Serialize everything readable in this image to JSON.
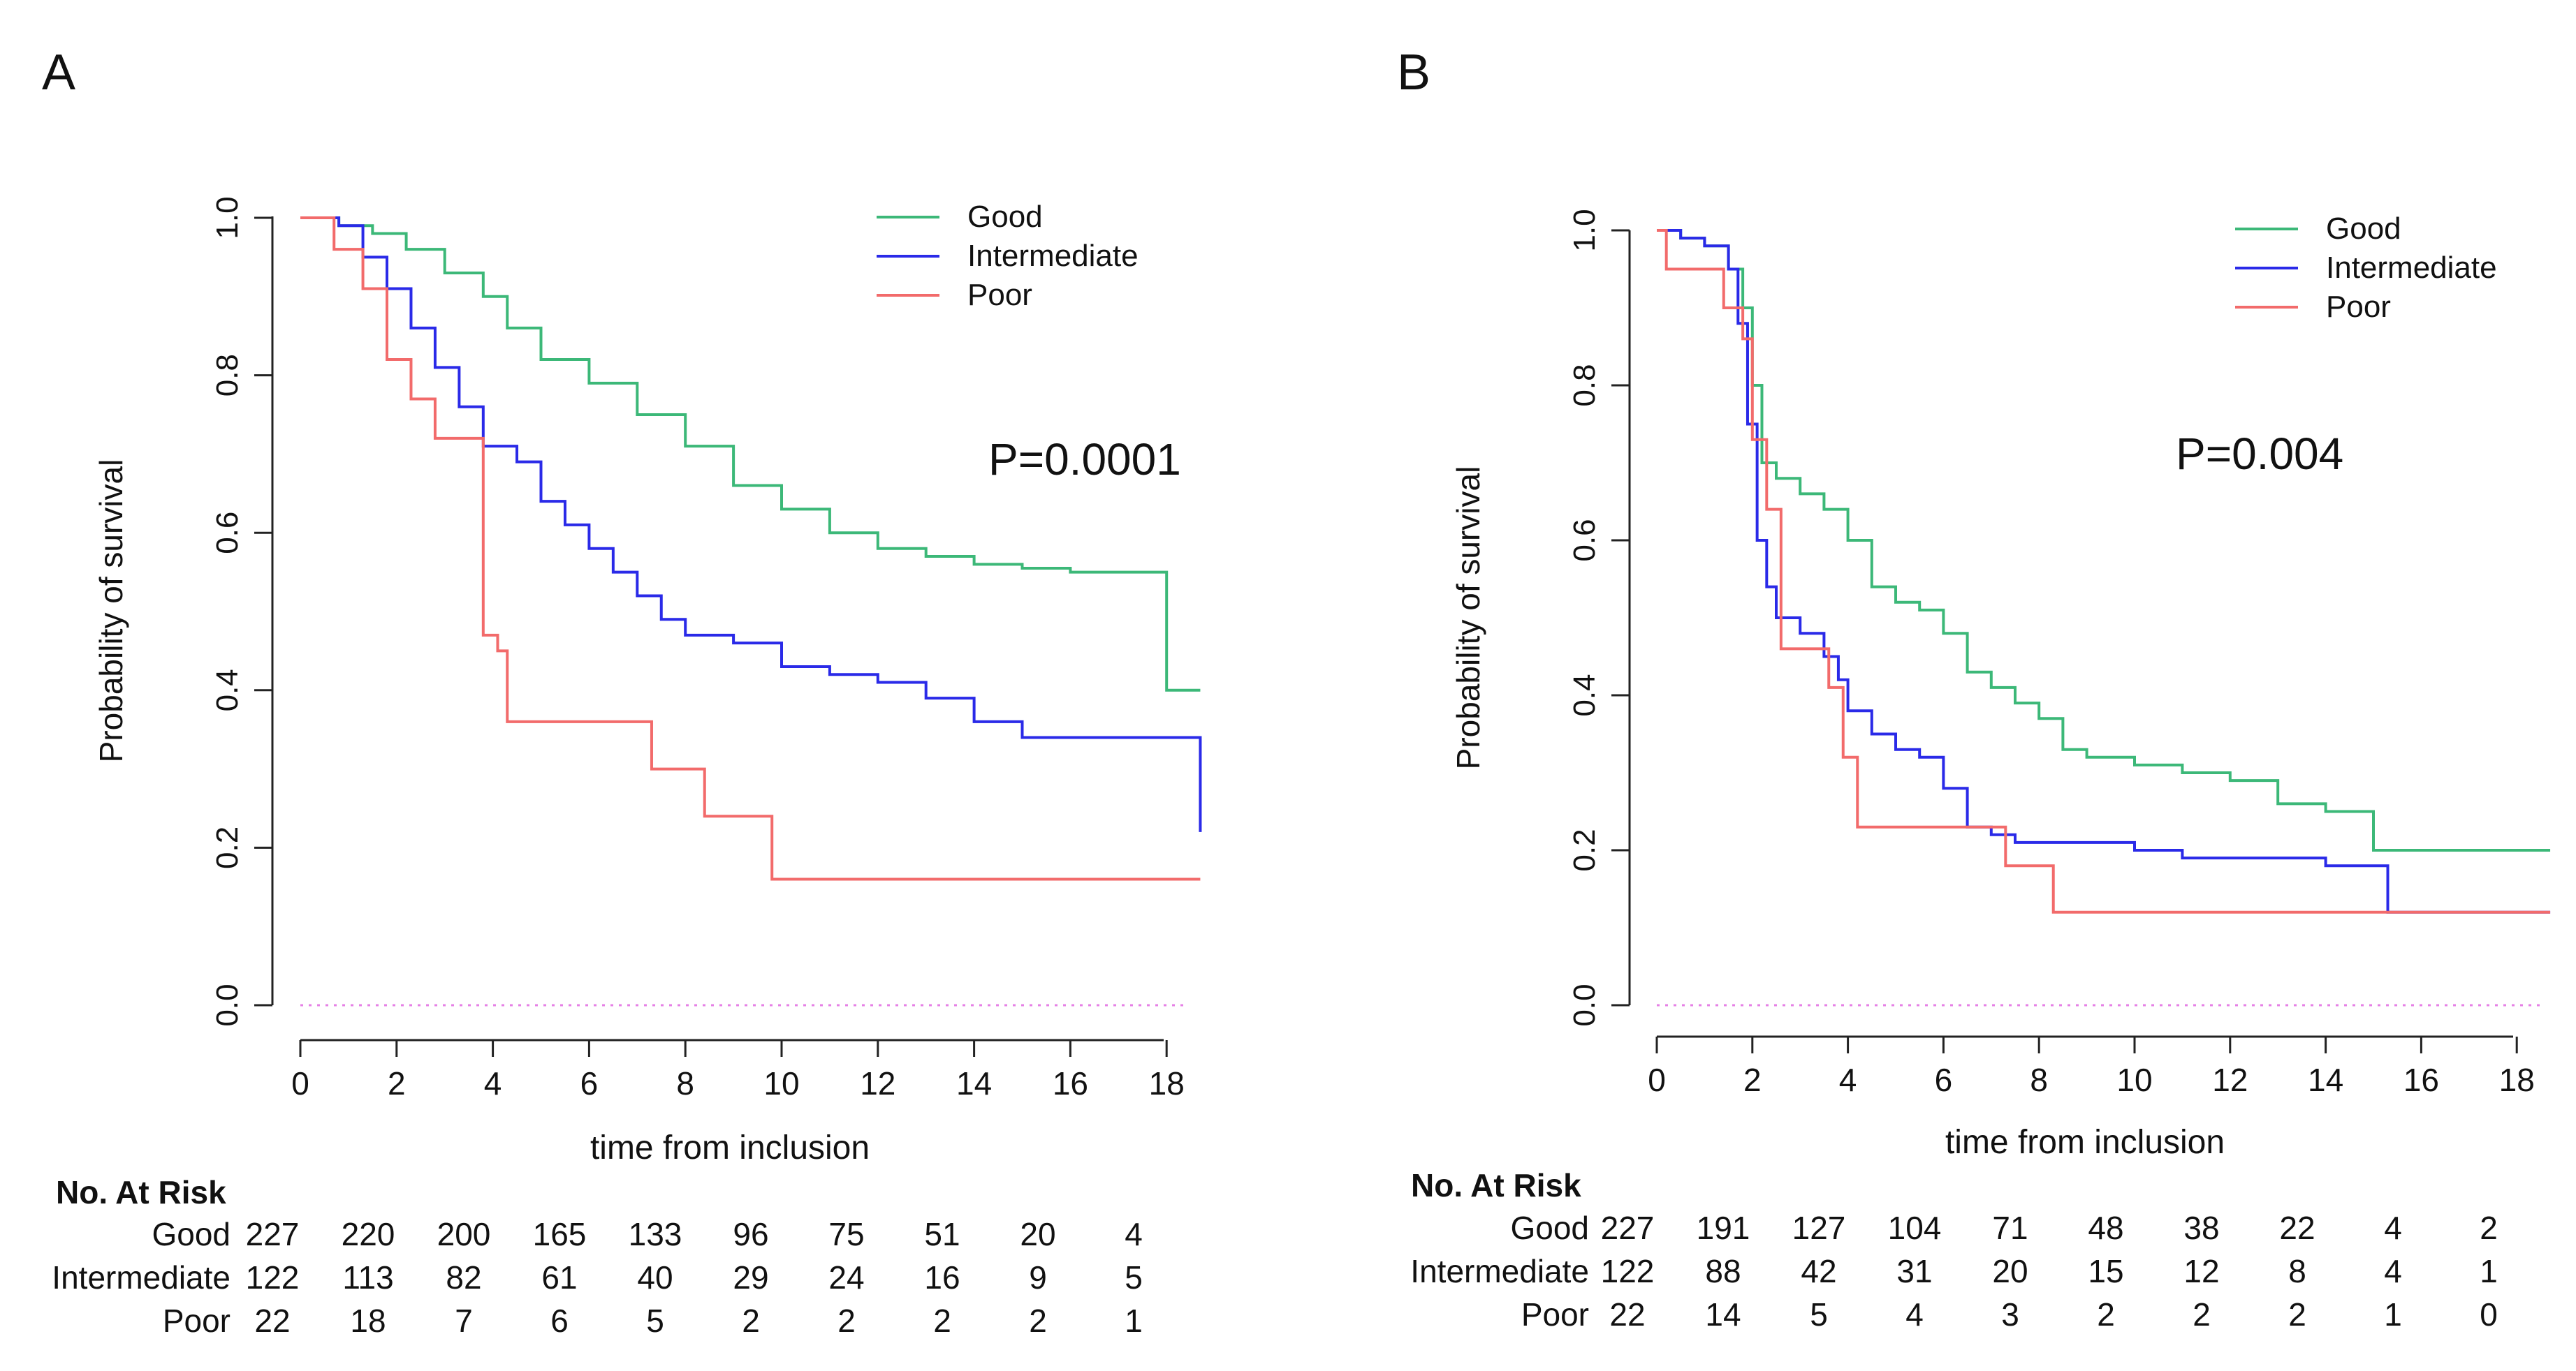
{
  "panels": [
    {
      "letter": "A",
      "pvalue": "P=0.0001",
      "risk_title": "No. At Risk",
      "risk_rows": [
        {
          "name": "Good",
          "values": [
            "227",
            "220",
            "200",
            "165",
            "133",
            "96",
            "75",
            "51",
            "20",
            "4"
          ]
        },
        {
          "name": "Intermediate",
          "values": [
            "122",
            "113",
            "82",
            "61",
            "40",
            "29",
            "24",
            "16",
            "9",
            "5"
          ]
        },
        {
          "name": "Poor",
          "values": [
            "22",
            "18",
            "7",
            "6",
            "5",
            "2",
            "2",
            "2",
            "2",
            "1"
          ]
        }
      ]
    },
    {
      "letter": "B",
      "pvalue": "P=0.004",
      "risk_title": "No. At Risk",
      "risk_rows": [
        {
          "name": "Good",
          "values": [
            "227",
            "191",
            "127",
            "104",
            "71",
            "48",
            "38",
            "22",
            "4",
            "2"
          ]
        },
        {
          "name": "Intermediate",
          "values": [
            "122",
            "88",
            "42",
            "31",
            "20",
            "15",
            "12",
            "8",
            "4",
            "1"
          ]
        },
        {
          "name": "Poor",
          "values": [
            "22",
            "14",
            "5",
            "4",
            "3",
            "2",
            "2",
            "2",
            "1",
            "0"
          ]
        }
      ]
    }
  ],
  "chart_data": [
    {
      "type": "line",
      "title": "A",
      "xlabel": "time from inclusion",
      "ylabel": "Probability of survival",
      "xlim": [
        0,
        18.7
      ],
      "ylim": [
        0,
        1
      ],
      "xticks": [
        "0",
        "2",
        "4",
        "6",
        "8",
        "10",
        "12",
        "14",
        "16",
        "18"
      ],
      "yticks": [
        "0.0",
        "0.2",
        "0.4",
        "0.6",
        "0.8",
        "1.0"
      ],
      "legend": "top-right",
      "series": [
        {
          "name": "Good",
          "color": "#3cb878",
          "x": [
            0,
            0.8,
            1.5,
            2.2,
            3,
            3.8,
            4.3,
            5,
            6,
            7,
            8,
            9,
            10,
            11,
            12,
            13,
            14,
            15,
            16,
            17,
            17.9,
            18.0,
            18.7
          ],
          "y": [
            1,
            0.99,
            0.98,
            0.96,
            0.93,
            0.9,
            0.86,
            0.82,
            0.79,
            0.75,
            0.71,
            0.66,
            0.63,
            0.6,
            0.58,
            0.57,
            0.56,
            0.555,
            0.55,
            0.55,
            0.55,
            0.4,
            0.4
          ]
        },
        {
          "name": "Intermediate",
          "color": "#2a2ae8",
          "x": [
            0,
            0.8,
            1.3,
            1.8,
            2.3,
            2.8,
            3.3,
            3.8,
            4.5,
            5,
            5.5,
            6,
            6.5,
            7,
            7.5,
            8,
            9,
            10,
            11,
            12,
            13,
            14,
            15,
            16,
            17,
            18,
            18.6,
            18.7
          ],
          "y": [
            1,
            0.99,
            0.95,
            0.91,
            0.86,
            0.81,
            0.76,
            0.71,
            0.69,
            0.64,
            0.61,
            0.58,
            0.55,
            0.52,
            0.49,
            0.47,
            0.46,
            0.43,
            0.42,
            0.41,
            0.39,
            0.36,
            0.34,
            0.34,
            0.34,
            0.34,
            0.34,
            0.22
          ]
        },
        {
          "name": "Poor",
          "color": "#f26b6b",
          "x": [
            0,
            0.7,
            1.3,
            1.8,
            2.3,
            2.8,
            3.5,
            3.8,
            4.1,
            4.3,
            5,
            6,
            7,
            7.3,
            8,
            8.4,
            9,
            9.8,
            10.5,
            12,
            14,
            16,
            18,
            18.7
          ],
          "y": [
            1,
            0.96,
            0.91,
            0.82,
            0.77,
            0.72,
            0.72,
            0.47,
            0.45,
            0.36,
            0.36,
            0.36,
            0.36,
            0.3,
            0.3,
            0.24,
            0.24,
            0.16,
            0.16,
            0.16,
            0.16,
            0.16,
            0.16,
            0.16
          ]
        }
      ]
    },
    {
      "type": "line",
      "title": "B",
      "xlabel": "time from inclusion",
      "ylabel": "Probability of survival",
      "xlim": [
        0,
        18.7
      ],
      "ylim": [
        0,
        1
      ],
      "xticks": [
        "0",
        "2",
        "4",
        "6",
        "8",
        "10",
        "12",
        "14",
        "16",
        "18"
      ],
      "yticks": [
        "0.0",
        "0.2",
        "0.4",
        "0.6",
        "0.8",
        "1.0"
      ],
      "legend": "top-right",
      "series": [
        {
          "name": "Good",
          "color": "#3cb878",
          "x": [
            0,
            0.5,
            1,
            1.5,
            1.8,
            2,
            2.2,
            2.5,
            3,
            3.5,
            4,
            4.5,
            5,
            5.5,
            6,
            6.5,
            7,
            7.5,
            8,
            8.5,
            9,
            10,
            11,
            12,
            13,
            14,
            15,
            16,
            17,
            18,
            18.7
          ],
          "y": [
            1,
            0.99,
            0.98,
            0.95,
            0.9,
            0.8,
            0.7,
            0.68,
            0.66,
            0.64,
            0.6,
            0.54,
            0.52,
            0.51,
            0.48,
            0.43,
            0.41,
            0.39,
            0.37,
            0.33,
            0.32,
            0.31,
            0.3,
            0.29,
            0.26,
            0.25,
            0.2,
            0.2,
            0.2,
            0.2,
            0.2
          ]
        },
        {
          "name": "Intermediate",
          "color": "#2a2ae8",
          "x": [
            0,
            0.5,
            1,
            1.5,
            1.7,
            1.9,
            2.1,
            2.3,
            2.5,
            3,
            3.5,
            3.8,
            4,
            4.5,
            5,
            5.5,
            6,
            6.5,
            7,
            7.5,
            8,
            9,
            10,
            11,
            12,
            13,
            14,
            15,
            15.3,
            16,
            17,
            18,
            18.7
          ],
          "y": [
            1,
            0.99,
            0.98,
            0.95,
            0.88,
            0.75,
            0.6,
            0.54,
            0.5,
            0.48,
            0.45,
            0.42,
            0.38,
            0.35,
            0.33,
            0.32,
            0.28,
            0.23,
            0.22,
            0.21,
            0.21,
            0.21,
            0.2,
            0.19,
            0.19,
            0.19,
            0.18,
            0.18,
            0.12,
            0.12,
            0.12,
            0.12,
            0.12
          ]
        },
        {
          "name": "Poor",
          "color": "#f26b6b",
          "x": [
            0,
            0.2,
            1,
            1.4,
            1.8,
            2,
            2.3,
            2.6,
            3.3,
            3.6,
            3.9,
            4.2,
            5,
            6,
            6.8,
            7.3,
            8,
            8.3,
            9,
            10,
            12,
            14,
            16,
            18,
            18.7
          ],
          "y": [
            1,
            0.95,
            0.95,
            0.9,
            0.86,
            0.73,
            0.64,
            0.46,
            0.46,
            0.41,
            0.32,
            0.23,
            0.23,
            0.23,
            0.23,
            0.18,
            0.18,
            0.12,
            0.12,
            0.12,
            0.12,
            0.12,
            0.12,
            0.12,
            0.12
          ]
        }
      ]
    }
  ]
}
